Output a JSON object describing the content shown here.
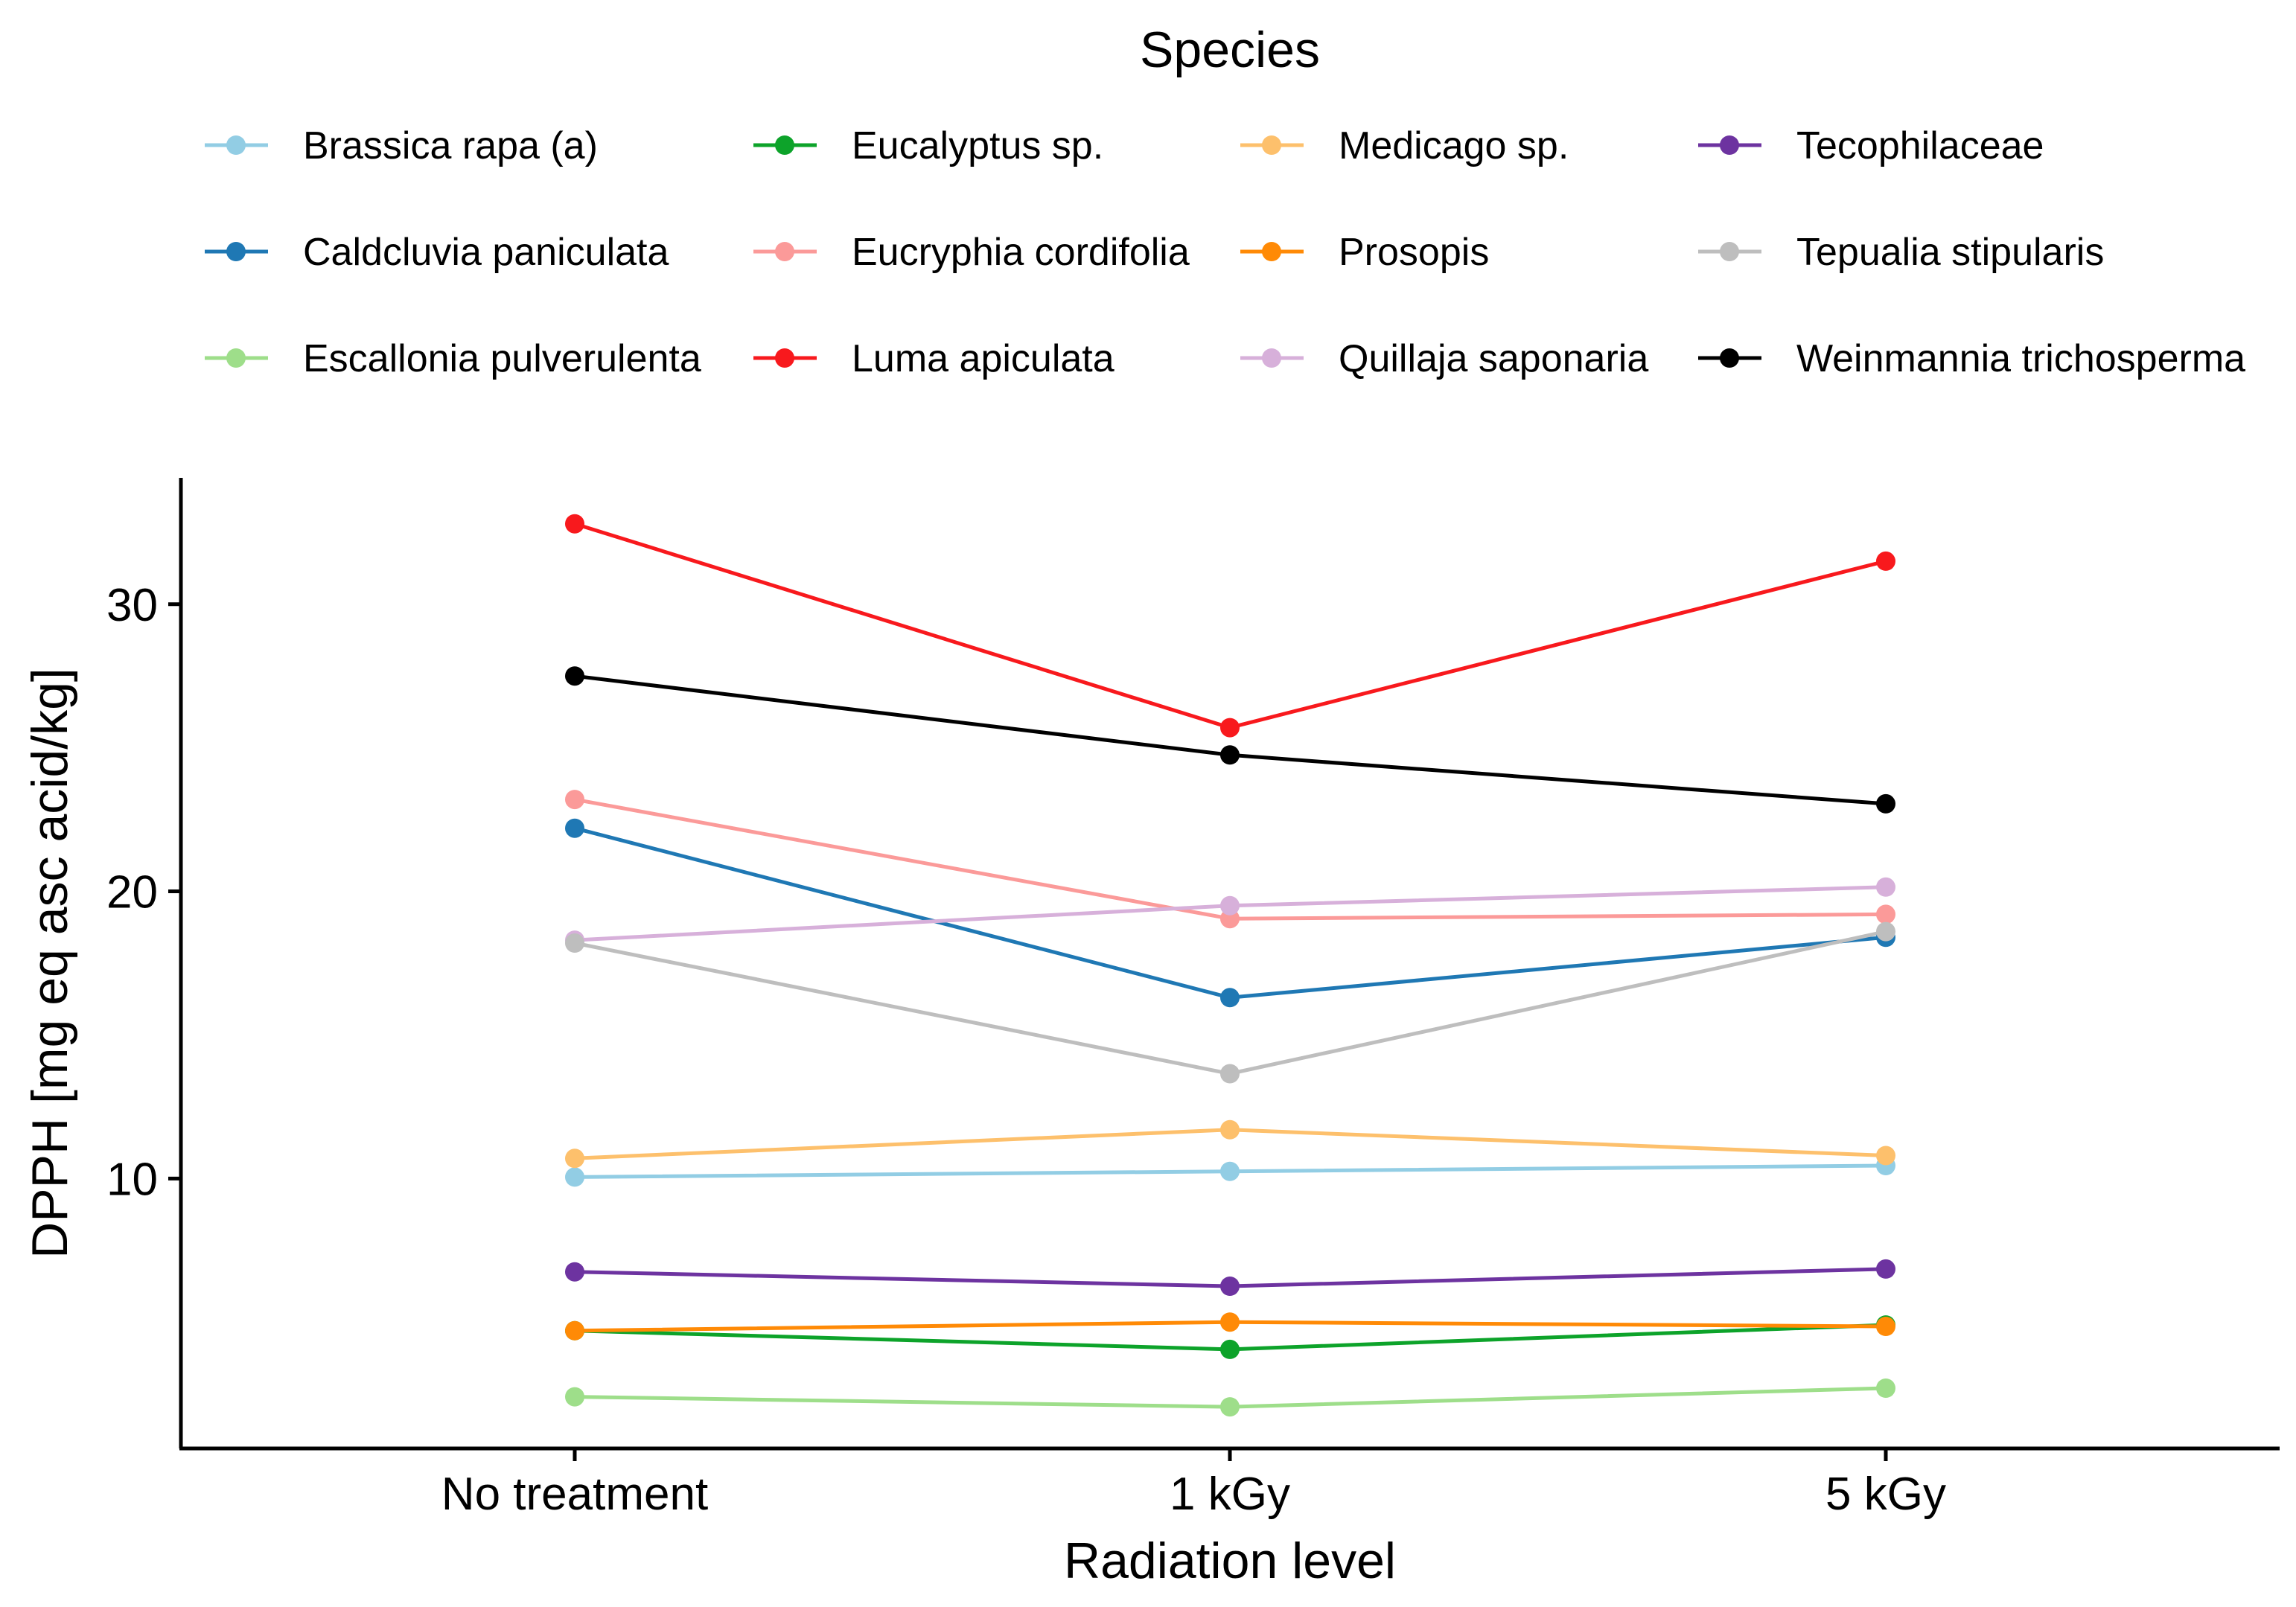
{
  "chart_data": {
    "type": "line",
    "title": "",
    "xlabel": "Radiation level",
    "ylabel": "DPPH [mg eq asc acid/kg]",
    "categories": [
      "No treatment",
      "1 kGy",
      "5 kGy"
    ],
    "y_ticks": [
      10,
      20,
      30
    ],
    "ylim": [
      0.6,
      34.4
    ],
    "grid": false,
    "legend": {
      "title": "Species",
      "position": "top",
      "columns": 4
    },
    "series": [
      {
        "name": "Brassica rapa (a)",
        "color": "#92cde4",
        "values": [
          10.05,
          10.25,
          10.45
        ]
      },
      {
        "name": "Caldcluvia paniculata",
        "color": "#1f78b4",
        "values": [
          22.2,
          16.3,
          18.4
        ]
      },
      {
        "name": "Escallonia pulverulenta",
        "color": "#9ede8a",
        "values": [
          2.4,
          2.05,
          2.7
        ]
      },
      {
        "name": "Eucalyptus sp.",
        "color": "#0da32a",
        "values": [
          4.7,
          4.05,
          4.9
        ]
      },
      {
        "name": "Eucryphia cordifolia",
        "color": "#fb9a99",
        "values": [
          23.2,
          19.05,
          19.2
        ]
      },
      {
        "name": "Luma apiculata",
        "color": "#f8191d",
        "values": [
          32.8,
          25.7,
          31.5
        ]
      },
      {
        "name": "Medicago sp.",
        "color": "#fdc06c",
        "values": [
          10.7,
          11.7,
          10.8
        ]
      },
      {
        "name": "Prosopis",
        "color": "#ff8a06",
        "values": [
          4.7,
          5.0,
          4.85
        ]
      },
      {
        "name": "Quillaja saponaria",
        "color": "#d7b0da",
        "values": [
          18.3,
          19.5,
          20.15
        ]
      },
      {
        "name": "Tecophilaceae",
        "color": "#6d33a0",
        "values": [
          6.75,
          6.25,
          6.85
        ]
      },
      {
        "name": "Tepualia stipularis",
        "color": "#bebebe",
        "values": [
          18.2,
          13.65,
          18.6
        ]
      },
      {
        "name": "Weinmannia trichosperma",
        "color": "#000000",
        "values": [
          27.5,
          24.75,
          23.05
        ]
      }
    ]
  }
}
